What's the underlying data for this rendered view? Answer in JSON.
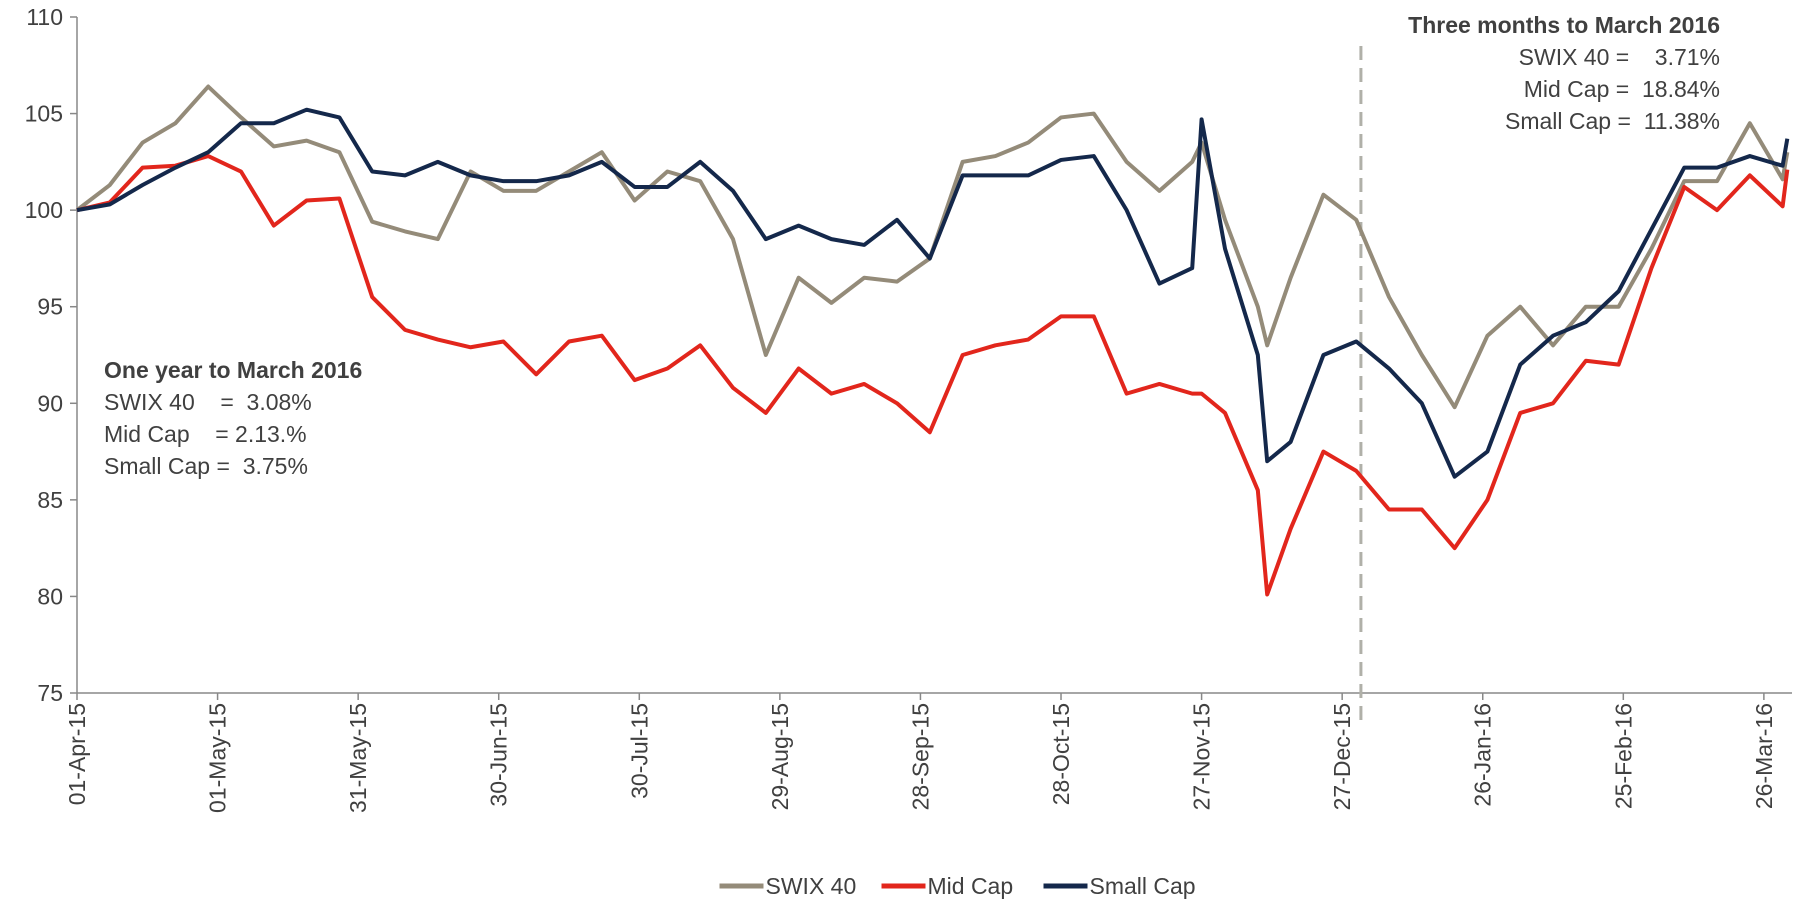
{
  "chart_data": {
    "type": "line",
    "x": [
      "2015-04-01",
      "2015-04-08",
      "2015-04-15",
      "2015-04-22",
      "2015-04-29",
      "2015-05-06",
      "2015-05-13",
      "2015-05-20",
      "2015-05-27",
      "2015-06-03",
      "2015-06-10",
      "2015-06-17",
      "2015-06-24",
      "2015-07-01",
      "2015-07-08",
      "2015-07-15",
      "2015-07-22",
      "2015-07-29",
      "2015-08-05",
      "2015-08-12",
      "2015-08-19",
      "2015-08-26",
      "2015-09-02",
      "2015-09-09",
      "2015-09-16",
      "2015-09-23",
      "2015-09-30",
      "2015-10-07",
      "2015-10-14",
      "2015-10-21",
      "2015-10-28",
      "2015-11-04",
      "2015-11-11",
      "2015-11-18",
      "2015-11-25",
      "2015-11-27",
      "2015-12-02",
      "2015-12-09",
      "2015-12-11",
      "2015-12-16",
      "2015-12-23",
      "2015-12-30",
      "2016-01-06",
      "2016-01-13",
      "2016-01-20",
      "2016-01-27",
      "2016-02-03",
      "2016-02-10",
      "2016-02-17",
      "2016-02-24",
      "2016-03-02",
      "2016-03-09",
      "2016-03-16",
      "2016-03-23",
      "2016-03-30",
      "2016-03-31"
    ],
    "series": [
      {
        "name": "SWIX 40",
        "color": "#948b79",
        "values": [
          100,
          101.3,
          103.5,
          104.5,
          106.4,
          104.8,
          103.3,
          103.6,
          103,
          99.4,
          98.9,
          98.5,
          102,
          101,
          101,
          102,
          103,
          100.5,
          102,
          101.5,
          98.5,
          92.5,
          96.5,
          95.2,
          96.5,
          96.3,
          97.5,
          102.5,
          102.8,
          103.5,
          104.8,
          105,
          102.5,
          101,
          102.5,
          103.5,
          99.5,
          95,
          93,
          96.5,
          100.8,
          99.5,
          95.5,
          92.5,
          89.8,
          93.5,
          95,
          93,
          95,
          95,
          98,
          101.5,
          101.5,
          104.5,
          101.6,
          103
        ]
      },
      {
        "name": "Mid Cap",
        "color": "#e2261c",
        "values": [
          100,
          100.4,
          102.2,
          102.3,
          102.8,
          102,
          99.2,
          100.5,
          100.6,
          95.5,
          93.8,
          93.3,
          92.9,
          93.2,
          91.5,
          93.2,
          93.5,
          91.2,
          91.8,
          93,
          90.8,
          89.5,
          91.8,
          90.5,
          91,
          90,
          88.5,
          92.5,
          93,
          93.3,
          94.5,
          94.5,
          90.5,
          91,
          90.5,
          90.5,
          89.5,
          85.5,
          80.1,
          83.5,
          87.5,
          86.5,
          84.5,
          84.5,
          82.5,
          85,
          89.5,
          90,
          92.2,
          92,
          97,
          101.2,
          100,
          101.8,
          100.2,
          102.1
        ]
      },
      {
        "name": "Small Cap",
        "color": "#14284b",
        "values": [
          100,
          100.3,
          101.3,
          102.2,
          103,
          104.5,
          104.5,
          105.2,
          104.8,
          102,
          101.8,
          102.5,
          101.8,
          101.5,
          101.5,
          101.8,
          102.5,
          101.2,
          101.2,
          102.5,
          101,
          98.5,
          99.2,
          98.5,
          98.2,
          99.5,
          97.5,
          101.8,
          101.8,
          101.8,
          102.6,
          102.8,
          100,
          96.2,
          97,
          104.7,
          98,
          92.5,
          87,
          88,
          92.5,
          93.2,
          91.8,
          90,
          86.2,
          87.5,
          92,
          93.5,
          94.2,
          95.8,
          99,
          102.2,
          102.2,
          102.8,
          102.3,
          103.7
        ]
      }
    ],
    "xlim": [
      "2015-04-01",
      "2016-04-01"
    ],
    "xticks": [
      {
        "value": "2015-04-01",
        "label": "01-Apr-15"
      },
      {
        "value": "2015-05-01",
        "label": "01-May-15"
      },
      {
        "value": "2015-05-31",
        "label": "31-May-15"
      },
      {
        "value": "2015-06-30",
        "label": "30-Jun-15"
      },
      {
        "value": "2015-07-30",
        "label": "30-Jul-15"
      },
      {
        "value": "2015-08-29",
        "label": "29-Aug-15"
      },
      {
        "value": "2015-09-28",
        "label": "28-Sep-15"
      },
      {
        "value": "2015-10-28",
        "label": "28-Oct-15"
      },
      {
        "value": "2015-11-27",
        "label": "27-Nov-15"
      },
      {
        "value": "2015-12-27",
        "label": "27-Dec-15"
      },
      {
        "value": "2016-01-26",
        "label": "26-Jan-16"
      },
      {
        "value": "2016-02-25",
        "label": "25-Feb-16"
      },
      {
        "value": "2016-03-26",
        "label": "26-Mar-16"
      }
    ],
    "ylim": [
      75,
      110
    ],
    "yticks": [
      75,
      80,
      85,
      90,
      95,
      100,
      105,
      110
    ],
    "grid": false,
    "legend": "bottom",
    "reference_line_x": "2015-12-31",
    "annotations": [
      {
        "title": "One year to March 2016",
        "lines": [
          "SWIX 40    =  3.08%",
          "Mid Cap    = 2.13.%",
          "Small Cap =  3.75%"
        ]
      },
      {
        "title": "Three months to March 2016",
        "lines": [
          "SWIX 40 =    3.71%",
          "Mid Cap =  18.84%",
          "Small Cap =  11.38%"
        ]
      }
    ]
  }
}
